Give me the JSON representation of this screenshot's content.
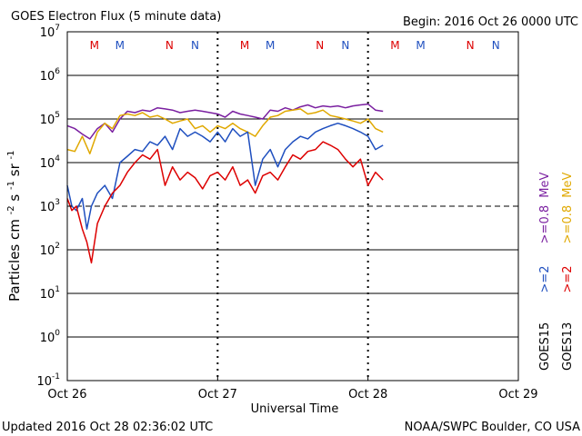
{
  "chart_data": {
    "type": "line",
    "title": "GOES Electron Flux (5 minute data)",
    "begin_label": "Begin: 2016 Oct 26 0000 UTC",
    "xlabel": "Universal Time",
    "ylabel_main": "Particles cm",
    "ylabel_sup1": "-2",
    "ylabel_mid1": "s",
    "ylabel_sup2": "-1",
    "ylabel_mid2": "sr",
    "ylabel_sup3": "-1",
    "footer_left": "Updated 2016 Oct 28 02:36:02 UTC",
    "footer_right": "NOAA/SWPC Boulder, CO USA",
    "x_ticks": [
      "Oct 26",
      "Oct 27",
      "Oct 28",
      "Oct 29"
    ],
    "xlim_days": [
      0,
      3
    ],
    "ylim_exp": [
      -1,
      7
    ],
    "y_ticks": [
      {
        "base": "10",
        "exp": "7"
      },
      {
        "base": "10",
        "exp": "6"
      },
      {
        "base": "10",
        "exp": "5"
      },
      {
        "base": "10",
        "exp": "4"
      },
      {
        "base": "10",
        "exp": "3"
      },
      {
        "base": "10",
        "exp": "2"
      },
      {
        "base": "10",
        "exp": "1"
      },
      {
        "base": "10",
        "exp": "0"
      },
      {
        "base": "10",
        "exp": "-1"
      }
    ],
    "threshold_exp": 3,
    "grid": true,
    "mn_markers": [
      {
        "day": 0.18,
        "label": "M",
        "color": "#dd0000"
      },
      {
        "day": 0.35,
        "label": "M",
        "color": "#1f4fbf"
      },
      {
        "day": 0.68,
        "label": "N",
        "color": "#dd0000"
      },
      {
        "day": 0.85,
        "label": "N",
        "color": "#1f4fbf"
      },
      {
        "day": 1.18,
        "label": "M",
        "color": "#dd0000"
      },
      {
        "day": 1.35,
        "label": "M",
        "color": "#1f4fbf"
      },
      {
        "day": 1.68,
        "label": "N",
        "color": "#dd0000"
      },
      {
        "day": 1.85,
        "label": "N",
        "color": "#1f4fbf"
      },
      {
        "day": 2.18,
        "label": "M",
        "color": "#dd0000"
      },
      {
        "day": 2.35,
        "label": "M",
        "color": "#1f4fbf"
      },
      {
        "day": 2.68,
        "label": "N",
        "color": "#dd0000"
      },
      {
        "day": 2.85,
        "label": "N",
        "color": "#1f4fbf"
      }
    ],
    "legend": {
      "goes15_label": "GOES15",
      "goes13_label": "GOES13",
      "e2_label": ">=2",
      "e08_label": ">=0.8",
      "unit": "MeV",
      "goes15_e2_color": "#1f4fbf",
      "goes15_e08_color": "#7a1fa0",
      "goes13_e2_color": "#dd0000",
      "goes13_e08_color": "#e0a800"
    },
    "series": [
      {
        "name": "GOES15 >=0.8 MeV",
        "color": "#7a1fa0",
        "x": [
          0,
          0.05,
          0.1,
          0.15,
          0.2,
          0.25,
          0.3,
          0.35,
          0.4,
          0.45,
          0.5,
          0.55,
          0.6,
          0.65,
          0.7,
          0.75,
          0.8,
          0.85,
          0.9,
          0.95,
          1.0,
          1.05,
          1.1,
          1.15,
          1.2,
          1.25,
          1.3,
          1.35,
          1.4,
          1.45,
          1.5,
          1.55,
          1.6,
          1.65,
          1.7,
          1.75,
          1.8,
          1.85,
          1.9,
          1.95,
          2.0,
          2.05,
          2.1
        ],
        "y": [
          70000.0,
          60000.0,
          45000.0,
          35000.0,
          60000.0,
          80000.0,
          50000.0,
          100000.0,
          150000.0,
          140000.0,
          160000.0,
          150000.0,
          180000.0,
          170000.0,
          160000.0,
          140000.0,
          150000.0,
          160000.0,
          150000.0,
          140000.0,
          130000.0,
          110000.0,
          150000.0,
          130000.0,
          120000.0,
          110000.0,
          100000.0,
          160000.0,
          150000.0,
          180000.0,
          160000.0,
          190000.0,
          210000.0,
          180000.0,
          200000.0,
          190000.0,
          200000.0,
          180000.0,
          200000.0,
          210000.0,
          220000.0,
          160000.0,
          150000.0
        ]
      },
      {
        "name": "GOES13 >=0.8 MeV",
        "color": "#e0a800",
        "x": [
          0,
          0.05,
          0.1,
          0.15,
          0.2,
          0.25,
          0.3,
          0.35,
          0.4,
          0.45,
          0.5,
          0.55,
          0.6,
          0.65,
          0.7,
          0.75,
          0.8,
          0.85,
          0.9,
          0.95,
          1.0,
          1.05,
          1.1,
          1.15,
          1.2,
          1.25,
          1.3,
          1.35,
          1.4,
          1.45,
          1.5,
          1.55,
          1.6,
          1.65,
          1.7,
          1.75,
          1.8,
          1.85,
          1.9,
          1.95,
          2.0,
          2.05,
          2.1
        ],
        "y": [
          20000.0,
          18000.0,
          40000.0,
          16000.0,
          50000.0,
          80000.0,
          60000.0,
          120000.0,
          130000.0,
          120000.0,
          140000.0,
          110000.0,
          120000.0,
          100000.0,
          80000.0,
          90000.0,
          100000.0,
          60000.0,
          70000.0,
          50000.0,
          70000.0,
          60000.0,
          80000.0,
          60000.0,
          50000.0,
          40000.0,
          70000.0,
          110000.0,
          120000.0,
          150000.0,
          160000.0,
          170000.0,
          130000.0,
          140000.0,
          160000.0,
          120000.0,
          110000.0,
          100000.0,
          90000.0,
          80000.0,
          100000.0,
          60000.0,
          50000.0
        ]
      },
      {
        "name": "GOES15 >=2 MeV",
        "color": "#1f4fbf",
        "x": [
          0,
          0.03,
          0.06,
          0.1,
          0.13,
          0.16,
          0.2,
          0.25,
          0.3,
          0.35,
          0.4,
          0.45,
          0.5,
          0.55,
          0.6,
          0.65,
          0.7,
          0.75,
          0.8,
          0.85,
          0.9,
          0.95,
          1.0,
          1.05,
          1.1,
          1.15,
          1.2,
          1.25,
          1.3,
          1.35,
          1.4,
          1.45,
          1.5,
          1.55,
          1.6,
          1.65,
          1.7,
          1.75,
          1.8,
          1.85,
          1.9,
          1.95,
          2.0,
          2.05,
          2.1
        ],
        "y": [
          3000.0,
          1000.0,
          800.0,
          1500.0,
          300.0,
          1000.0,
          2000.0,
          3000.0,
          1500.0,
          10000.0,
          14000.0,
          20000.0,
          18000.0,
          30000.0,
          25000.0,
          40000.0,
          20000.0,
          60000.0,
          40000.0,
          50000.0,
          40000.0,
          30000.0,
          50000.0,
          30000.0,
          60000.0,
          40000.0,
          50000.0,
          3000.0,
          12000.0,
          20000.0,
          8000.0,
          20000.0,
          30000.0,
          40000.0,
          35000.0,
          50000.0,
          60000.0,
          70000.0,
          80000.0,
          70000.0,
          60000.0,
          50000.0,
          40000.0,
          20000.0,
          25000.0
        ]
      },
      {
        "name": "GOES13 >=2 MeV",
        "color": "#dd0000",
        "x": [
          0,
          0.03,
          0.06,
          0.1,
          0.13,
          0.16,
          0.2,
          0.25,
          0.3,
          0.35,
          0.4,
          0.45,
          0.5,
          0.55,
          0.6,
          0.65,
          0.7,
          0.75,
          0.8,
          0.85,
          0.9,
          0.95,
          1.0,
          1.05,
          1.1,
          1.15,
          1.2,
          1.25,
          1.3,
          1.35,
          1.4,
          1.45,
          1.5,
          1.55,
          1.6,
          1.65,
          1.7,
          1.75,
          1.8,
          1.85,
          1.9,
          1.95,
          2.0,
          2.05,
          2.1
        ],
        "y": [
          1500.0,
          800.0,
          1000.0,
          300.0,
          150.0,
          50,
          400.0,
          1000.0,
          2000.0,
          3000.0,
          6000.0,
          10000.0,
          15000.0,
          12000.0,
          20000.0,
          3000.0,
          8000.0,
          4000.0,
          6000.0,
          4500.0,
          2500.0,
          5000.0,
          6000.0,
          4000.0,
          8000.0,
          3000.0,
          4000.0,
          2000.0,
          5000.0,
          6000.0,
          4000.0,
          8000.0,
          15000.0,
          12000.0,
          18000.0,
          20000.0,
          30000.0,
          25000.0,
          20000.0,
          12000.0,
          8000.0,
          12000.0,
          3000.0,
          6000.0,
          4000.0
        ]
      }
    ]
  }
}
